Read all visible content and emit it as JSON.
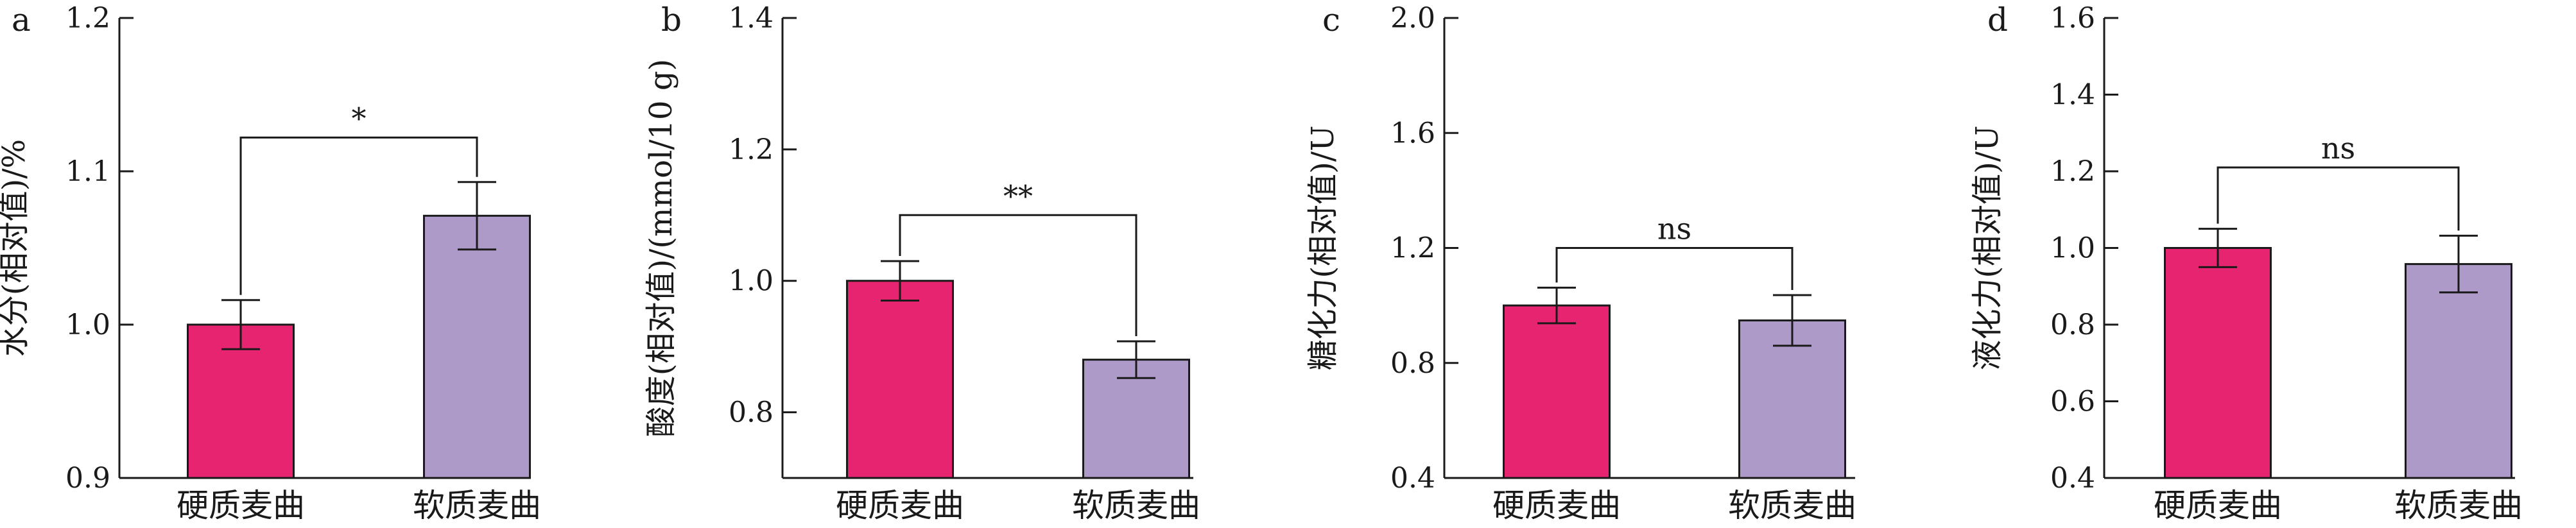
{
  "colors": {
    "hard": "#e6246f",
    "soft": "#ad9ac8",
    "axis": "#1a1a1a"
  },
  "chart_data": [
    {
      "type": "bar",
      "panel": "a",
      "ylabel": "水分(相对值)/%",
      "categories": [
        "硬质麦曲",
        "软质麦曲"
      ],
      "values": [
        1.0,
        1.071
      ],
      "errors": [
        0.016,
        0.022
      ],
      "ylim": [
        0.9,
        1.2
      ],
      "yticks": [
        0.9,
        1.0,
        1.1,
        1.2
      ],
      "tick_labels": [
        "0.9",
        "1.0",
        "1.1",
        "1.2"
      ],
      "significance": "*",
      "bracket_y": 1.122
    },
    {
      "type": "bar",
      "panel": "b",
      "ylabel": "酸度(相对值)/(mmol/10 g)",
      "categories": [
        "硬质麦曲",
        "软质麦曲"
      ],
      "values": [
        1.0,
        0.88
      ],
      "errors": [
        0.03,
        0.028
      ],
      "ylim": [
        0.7,
        1.4
      ],
      "yticks": [
        0.8,
        1.0,
        1.2,
        1.4
      ],
      "tick_labels": [
        "0.8",
        "1.0",
        "1.2",
        "1.4"
      ],
      "significance": "**",
      "bracket_y": 1.1
    },
    {
      "type": "bar",
      "panel": "c",
      "ylabel": "糖化力(相对值)/U",
      "categories": [
        "硬质麦曲",
        "软质麦曲"
      ],
      "values": [
        1.0,
        0.948
      ],
      "errors": [
        0.062,
        0.088
      ],
      "ylim": [
        0.4,
        2.0
      ],
      "yticks": [
        0.4,
        0.8,
        1.2,
        1.6,
        2.0
      ],
      "tick_labels": [
        "0.4",
        "0.8",
        "1.2",
        "1.6",
        "2.0"
      ],
      "significance": "ns",
      "bracket_y": 1.2
    },
    {
      "type": "bar",
      "panel": "d",
      "ylabel": "液化力(相对值)/U",
      "categories": [
        "硬质麦曲",
        "软质麦曲"
      ],
      "values": [
        1.0,
        0.958
      ],
      "errors": [
        0.05,
        0.074
      ],
      "ylim": [
        0.4,
        1.6
      ],
      "yticks": [
        0.4,
        0.6,
        0.8,
        1.0,
        1.2,
        1.4,
        1.6
      ],
      "tick_labels": [
        "0.4",
        "0.6",
        "0.8",
        "1.0",
        "1.2",
        "1.4",
        "1.6"
      ],
      "significance": "ns",
      "bracket_y": 1.21
    }
  ]
}
